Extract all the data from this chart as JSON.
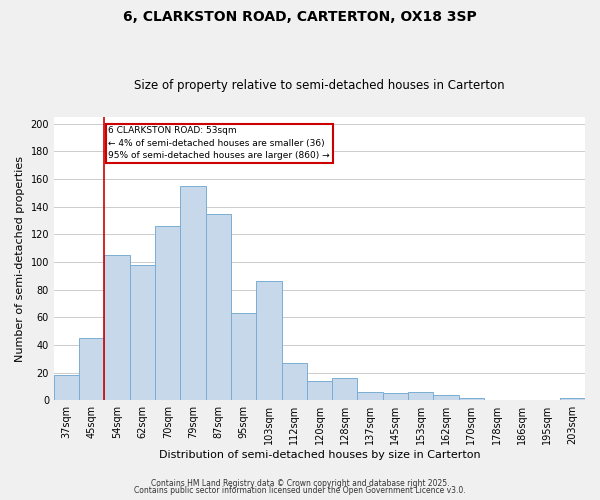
{
  "title": "6, CLARKSTON ROAD, CARTERTON, OX18 3SP",
  "subtitle": "Size of property relative to semi-detached houses in Carterton",
  "xlabel": "Distribution of semi-detached houses by size in Carterton",
  "ylabel": "Number of semi-detached properties",
  "bar_labels": [
    "37sqm",
    "45sqm",
    "54sqm",
    "62sqm",
    "70sqm",
    "79sqm",
    "87sqm",
    "95sqm",
    "103sqm",
    "112sqm",
    "120sqm",
    "128sqm",
    "137sqm",
    "145sqm",
    "153sqm",
    "162sqm",
    "170sqm",
    "178sqm",
    "186sqm",
    "195sqm",
    "203sqm"
  ],
  "bar_heights": [
    18,
    45,
    105,
    98,
    126,
    155,
    135,
    63,
    86,
    27,
    14,
    16,
    6,
    5,
    6,
    4,
    2,
    0,
    0,
    0,
    2
  ],
  "bar_color": "#c8d8eb",
  "bar_edge_color": "#7aadd4",
  "marker_line_index": 2,
  "marker_label": "6 CLARKSTON ROAD: 53sqm",
  "marker_pct_smaller": "4% of semi-detached houses are smaller (36)",
  "marker_pct_larger": "95% of semi-detached houses are larger (860)",
  "marker_line_color": "#cc0000",
  "ylim": [
    0,
    205
  ],
  "yticks": [
    0,
    20,
    40,
    60,
    80,
    100,
    120,
    140,
    160,
    180,
    200
  ],
  "footer1": "Contains HM Land Registry data © Crown copyright and database right 2025.",
  "footer2": "Contains public sector information licensed under the Open Government Licence v3.0.",
  "background_color": "#f0f0f0",
  "plot_background_color": "#ffffff",
  "grid_color": "#cccccc",
  "title_fontsize": 10,
  "subtitle_fontsize": 8.5,
  "xlabel_fontsize": 8,
  "ylabel_fontsize": 8,
  "tick_fontsize": 7,
  "footer_fontsize": 5.5
}
